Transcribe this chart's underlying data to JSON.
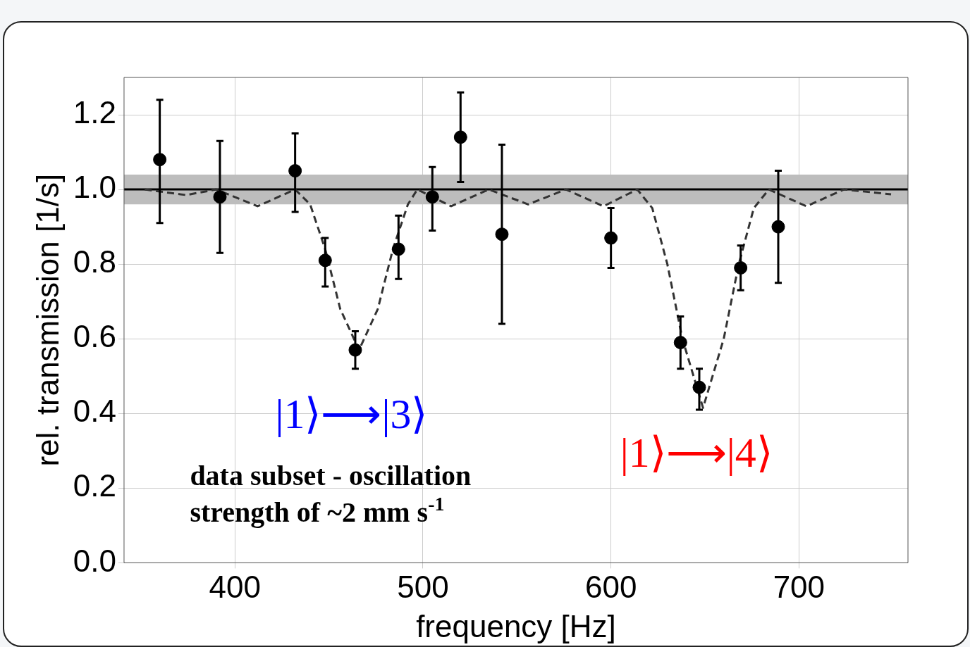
{
  "chart_data": {
    "type": "scatter",
    "xlabel": "frequency [Hz]",
    "ylabel": "rel. transmission [1/s]",
    "xlim": [
      341,
      758
    ],
    "ylim": [
      0,
      1.3
    ],
    "xticks": [
      400,
      500,
      600,
      700
    ],
    "yticks": [
      {
        "value": 0,
        "label": "0.0"
      },
      {
        "value": 0.2,
        "label": "0.2"
      },
      {
        "value": 0.4,
        "label": "0.4"
      },
      {
        "value": 0.6,
        "label": "0.6"
      },
      {
        "value": 0.8,
        "label": "0.8"
      },
      {
        "value": 1,
        "label": "1.0"
      },
      {
        "value": 1.2,
        "label": "1.2"
      }
    ],
    "grid": true,
    "legend": false,
    "series": [
      {
        "type": "scatter",
        "color": "#000000",
        "marker": "circle",
        "x": [
          360,
          392,
          432,
          448,
          464,
          487,
          505,
          520,
          542,
          600,
          637,
          647,
          669,
          689
        ],
        "values": [
          1.08,
          0.98,
          1.05,
          0.81,
          0.57,
          0.84,
          0.98,
          1.14,
          0.88,
          0.87,
          0.59,
          0.47,
          0.79,
          0.9
        ],
        "errors": [
          [
            0.91,
            1.24
          ],
          [
            0.83,
            1.13
          ],
          [
            0.94,
            1.15
          ],
          [
            0.74,
            0.87
          ],
          [
            0.52,
            0.62
          ],
          [
            0.76,
            0.93
          ],
          [
            0.89,
            1.06
          ],
          [
            1.02,
            1.26
          ],
          [
            0.64,
            1.12
          ],
          [
            0.79,
            0.95
          ],
          [
            0.52,
            0.66
          ],
          [
            0.41,
            0.52
          ],
          [
            0.73,
            0.85
          ],
          [
            0.75,
            1.05
          ]
        ]
      },
      {
        "type": "line",
        "color": "#333333",
        "marker": "none",
        "line_style": "dashed",
        "x": [
          352,
          374,
          390,
          412,
          432,
          440,
          448,
          456,
          466,
          476,
          484,
          492,
          497,
          515,
          535,
          556,
          576,
          596,
          614,
          622,
          630,
          638,
          649,
          660,
          668,
          676,
          684,
          704,
          724,
          749
        ],
        "values": [
          1.0,
          0.985,
          1.0,
          0.955,
          1.0,
          0.96,
          0.84,
          0.68,
          0.57,
          0.68,
          0.84,
          0.96,
          1.0,
          0.955,
          1.0,
          0.96,
          1.0,
          0.955,
          1.0,
          0.95,
          0.8,
          0.6,
          0.415,
          0.6,
          0.8,
          0.95,
          1.0,
          0.955,
          1.0,
          0.987
        ]
      }
    ],
    "ref_lines": [
      {
        "axis": "y",
        "value": 1.0,
        "color": "#000000",
        "line_style": "solid"
      }
    ],
    "bands": [
      {
        "axis": "y",
        "from": 0.96,
        "to": 1.04,
        "color": "#bdbdbd"
      }
    ],
    "annotations": [
      "|1⟩⟶|3⟩",
      "|1⟩⟶|4⟩",
      "data subset - oscillation\nstrength of ~2 mm s$^{-1}$"
    ]
  }
}
